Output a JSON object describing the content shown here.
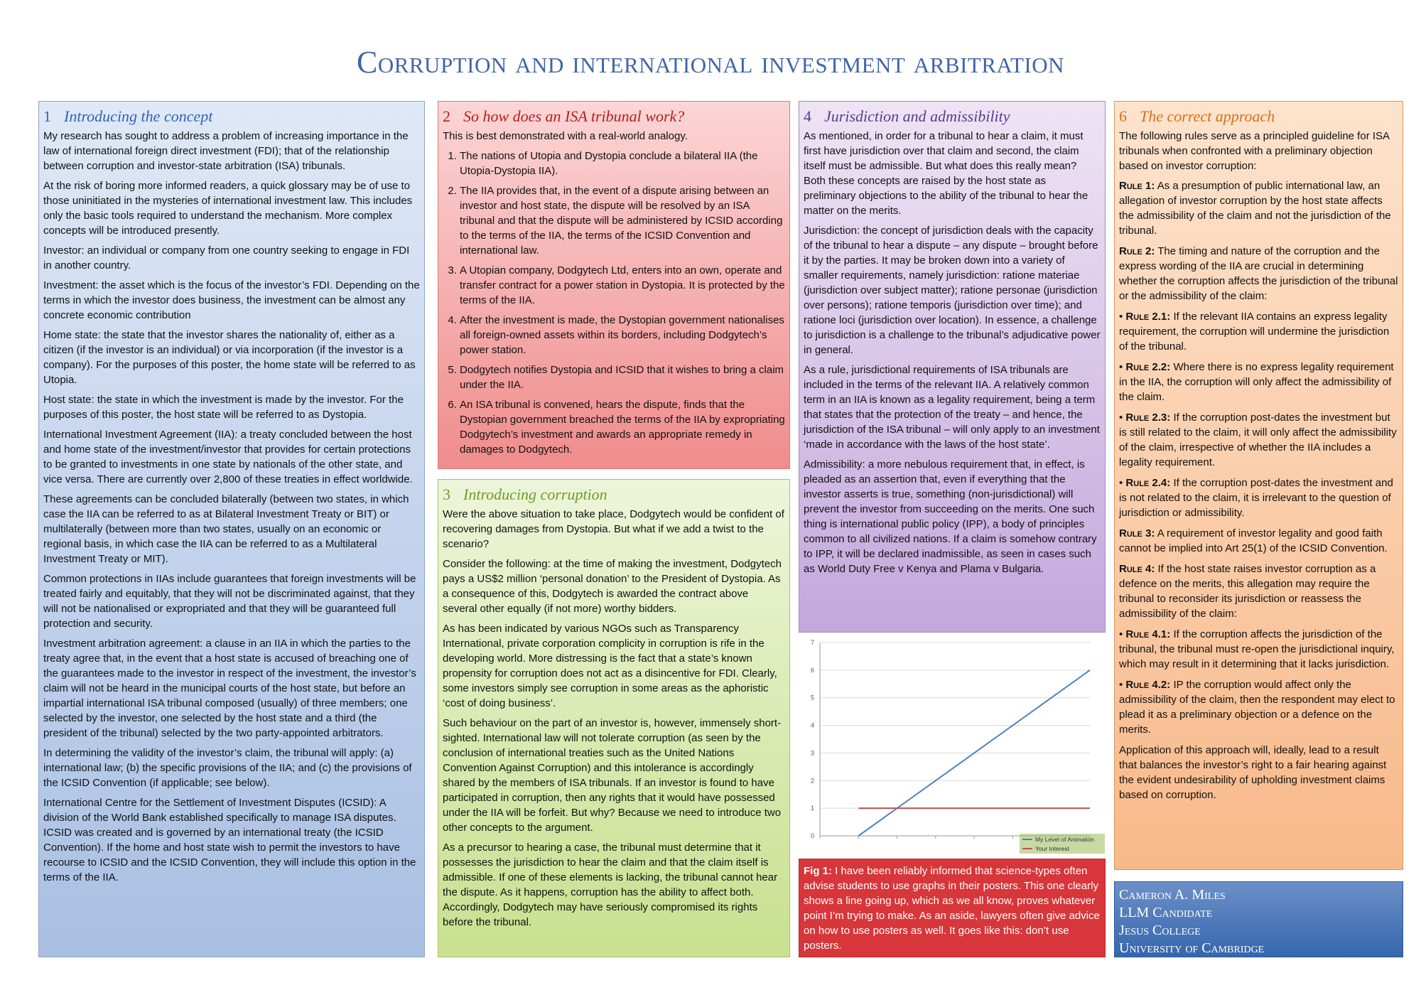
{
  "title": "Corruption and international investment arbitration",
  "panel1": {
    "num": "1",
    "heading": "Introducing the concept",
    "paras": [
      "My research has sought to address a problem of increasing importance in the law of international foreign direct investment (FDI); that of the relationship between corruption and investor-state arbitration (ISA) tribunals.",
      "At the risk of boring more informed readers, a quick glossary may be of use to those uninitiated in the mysteries of international investment law. This includes only the basic tools required to understand the mechanism. More complex concepts will be introduced presently.",
      "Investor: an individual or company from one country seeking to engage in FDI in another country.",
      "Investment: the asset which is the focus of the investor’s FDI. Depending on the terms in which the investor does business, the investment can be almost any concrete economic contribution",
      "Home state: the state that the investor shares the nationality of, either as a citizen (if the investor is an individual) or via incorporation (if the investor is a company). For the purposes of this poster, the home state will be referred to as Utopia.",
      "Host state: the state in which the investment is made by the investor. For the purposes of this poster, the host state will be referred to as Dystopia.",
      "International Investment Agreement (IIA): a treaty concluded between the host and home state of the investment/investor that provides for certain protections to be granted to investments in one state by nationals of the other state, and vice versa. There are currently over 2,800 of these treaties in effect worldwide.",
      "These agreements can be concluded bilaterally (between two states, in which case the IIA can be referred to as at Bilateral Investment Treaty or BIT) or multilaterally (between more than two states, usually on an economic or regional basis, in which case the IIA can be referred to as a Multilateral Investment Treaty or MIT).",
      "Common protections in IIAs include guarantees that foreign investments will be treated fairly and equitably, that they will not be discriminated against, that they will not be nationalised or expropriated and that they will be guaranteed full protection and security.",
      "Investment arbitration agreement: a clause in an IIA in which the parties to the treaty agree that, in the event that a host state is accused of breaching one of the guarantees made to the investor in respect of the investment, the investor’s claim will not be heard in the municipal courts of the host state, but before an impartial international ISA tribunal composed (usually) of three members; one selected by the investor, one selected by the host state and a third (the president of the tribunal) selected by the two party-appointed arbitrators.",
      "In determining the validity of the investor’s claim, the tribunal will apply: (a) international law; (b) the specific provisions of the IIA; and (c) the provisions of the ICSID Convention (if applicable; see below).",
      "International Centre for the Settlement of Investment Disputes (ICSID): A division of the World Bank established specifically to manage ISA disputes. ICSID was created and is governed by an international treaty (the ICSID Convention). If the home and host state wish to permit the investors to have recourse to ICSID and the ICSID Convention, they will include this option in the terms of the IIA."
    ]
  },
  "panel2": {
    "num": "2",
    "heading": "So how does an ISA tribunal work?",
    "intro": "This is best demonstrated with a real-world analogy.",
    "items": [
      "The nations of Utopia and Dystopia conclude a bilateral IIA (the Utopia-Dystopia IIA).",
      "The IIA provides that, in the event of a dispute arising between an investor and host state, the dispute will be resolved by an ISA tribunal and that the dispute will be administered by ICSID according to the terms of the IIA, the terms of the ICSID Convention and international law.",
      "A Utopian company, Dodgytech Ltd, enters into an own, operate and transfer contract for a power station in Dystopia. It is protected by the terms of the IIA.",
      "After the investment is made, the Dystopian government nationalises all foreign-owned assets within its borders, including Dodgytech’s power station.",
      "Dodgytech notifies Dystopia and ICSID that it wishes to bring a claim under the IIA.",
      "An ISA tribunal is convened, hears the dispute, finds that the Dystopian government breached the terms of the IIA by expropriating Dodgytech’s investment and awards an appropriate remedy in damages to Dodgytech."
    ]
  },
  "panel3": {
    "num": "3",
    "heading": "Introducing corruption",
    "paras": [
      "Were the above situation to take place, Dodgytech would be confident of recovering damages from Dystopia. But what if we add a twist to the scenario?",
      "Consider the following: at the time of making the investment, Dodgytech pays a US$2 million ‘personal donation’ to the President of Dystopia. As a consequence of this, Dodgytech is awarded the contract above several other equally (if not more) worthy bidders.",
      "As has been indicated by various NGOs such as Transparency International, private corporation complicity in corruption is rife in the developing world. More distressing is the fact that a state’s known propensity for corruption does not act as a disincentive for FDI. Clearly, some investors simply see corruption in some areas as the aphoristic ‘cost of doing business’.",
      "Such behaviour on the part of an investor is, however, immensely short-sighted. International law will not tolerate corruption (as seen by the conclusion of international treaties such as the United Nations Convention Against Corruption) and this intolerance is accordingly shared by the members of ISA tribunals. If an investor is found to have participated in corruption, then any rights that it would have possessed under the IIA will be forfeit. But why? Because we need to introduce two other concepts to the argument.",
      "As a precursor to hearing a case, the tribunal must determine that it possesses the jurisdiction to hear the claim and that the claim itself is admissible. If one of these elements is lacking, the tribunal cannot hear the dispute. As it happens, corruption has the ability to affect both. Accordingly, Dodgytech may have seriously compromised its rights before the tribunal."
    ]
  },
  "panel4": {
    "num": "4",
    "heading": "Jurisdiction and admissibility",
    "paras": [
      "As mentioned, in order for a tribunal to hear a claim, it must first have jurisdiction over that claim and second, the claim itself must be admissible. But what does this really mean? Both these concepts are raised by the host state as preliminary objections to the ability of the tribunal to hear the matter on the merits.",
      "Jurisdiction: the concept of jurisdiction deals with the capacity of the tribunal to hear a dispute – any dispute – brought before it by the parties. It may be broken down into a variety of smaller requirements, namely jurisdiction: ratione materiae (jurisdiction over subject matter); ratione personae (jurisdiction over persons); ratione temporis (jurisdiction over time); and ratione loci (jurisdiction over location). In essence, a challenge to jurisdiction is a challenge to the tribunal’s adjudicative power in general.",
      "As a rule, jurisdictional requirements of ISA tribunals are included in the terms of the relevant IIA. A relatively common term in an IIA is known as a legality requirement, being a term that states that the protection of the treaty – and hence, the jurisdiction of the ISA tribunal – will only apply to an investment ‘made in accordance with the laws of the host state’.",
      "Admissibility: a more nebulous requirement that, in effect, is pleaded as an assertion that, even if everything that the investor asserts is true, something (non-jurisdictional) will prevent the investor from succeeding on the merits. One such thing is international public policy (IPP), a body of principles common to all civilized nations. If a claim is somehow contrary to IPP, it will be declared inadmissible, as seen in cases such as World Duty Free v Kenya and Plama v Bulgaria."
    ]
  },
  "fig": {
    "label": "Fig 1:",
    "text": "I have been reliably informed that science-types often advise students to use graphs in their posters. This one clearly shows a line going up, which as we all know, proves whatever point I’m trying to make. As an aside, lawyers often give advice on how to use posters as well. It goes like this: don’t use posters."
  },
  "chart_data": {
    "type": "line",
    "x": [
      0,
      1,
      2,
      3,
      4,
      5,
      6
    ],
    "ylim": [
      0,
      7
    ],
    "yticks": [
      "0",
      "1",
      "2",
      "3",
      "4",
      "5",
      "6",
      "7"
    ],
    "grid": true,
    "legend_position": "bottom-right",
    "series": [
      {
        "name": "My Level of Animation",
        "color": "#4f81bd",
        "values": [
          0,
          1,
          2,
          3,
          4,
          5,
          6
        ]
      },
      {
        "name": "Your Interest",
        "color": "#c0504d",
        "values": [
          1,
          1,
          1,
          1,
          1,
          1,
          1
        ]
      }
    ]
  },
  "panel6": {
    "num": "6",
    "heading": "The correct approach",
    "intro": "The following rules serve as a principled guideline for ISA tribunals when confronted with a preliminary objection based on investor corruption:",
    "rules": [
      {
        "label": "Rule 1:",
        "text": "As a presumption of public international law, an allegation of investor corruption by the host state affects the admissibility of the claim and not the jurisdiction of the tribunal.",
        "bullet": false
      },
      {
        "label": "Rule 2:",
        "text": "The timing and nature of the corruption and the express wording of the IIA are crucial in determining whether the corruption affects the jurisdiction of the tribunal or the admissibility of the claim:",
        "bullet": false
      },
      {
        "label": "Rule 2.1:",
        "text": "If the relevant IIA contains an express legality requirement, the corruption will undermine the jurisdiction of the tribunal.",
        "bullet": true
      },
      {
        "label": "Rule 2.2:",
        "text": "Where there is no express legality requirement in the IIA, the corruption will only affect the admissibility of the claim.",
        "bullet": true
      },
      {
        "label": "Rule 2.3:",
        "text": "If the corruption post-dates the investment but is still related to the claim, it will only affect the admissibility of the claim, irrespective of whether the IIA includes a legality requirement.",
        "bullet": true
      },
      {
        "label": "Rule 2.4:",
        "text": "If the corruption post-dates the investment and is not related to the claim, it is irrelevant to the question of jurisdiction or admissibility.",
        "bullet": true
      },
      {
        "label": "Rule 3:",
        "text": "A requirement of investor legality and good faith cannot be implied into Art 25(1) of the ICSID Convention.",
        "bullet": false
      },
      {
        "label": "Rule 4:",
        "text": "If the host state raises investor corruption as a defence on the merits, this allegation may require the tribunal to reconsider its jurisdiction or reassess the admissibility of the claim:",
        "bullet": false
      },
      {
        "label": "Rule 4.1:",
        "text": "If the corruption affects the jurisdiction of the tribunal, the tribunal must re-open the jurisdictional inquiry, which may result in it determining that it lacks jurisdiction.",
        "bullet": true
      },
      {
        "label": "Rule 4.2:",
        "text": "IP the corruption would affect only the admissibility of the claim, then the respondent may elect to plead it as a preliminary objection or a defence on the merits.",
        "bullet": true
      }
    ],
    "closing": "Application of this approach will, ideally, lead to a result that balances the investor’s right to a fair hearing against the evident undesirability of upholding investment claims based on corruption."
  },
  "author": {
    "lines": [
      "Cameron A. Miles",
      "LLM Candidate",
      "Jesus College",
      "University of Cambridge"
    ]
  }
}
